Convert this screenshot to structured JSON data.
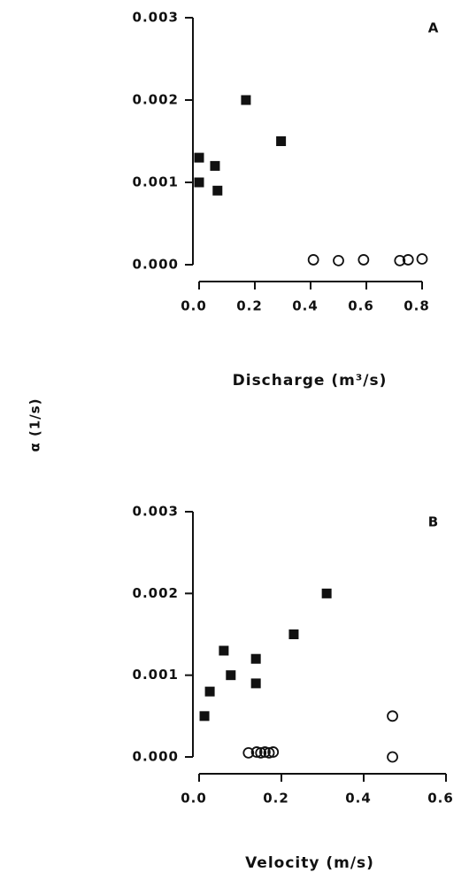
{
  "chart_data": [
    {
      "type": "scatter",
      "panel": "A",
      "xlabel": "Discharge (m³/s)",
      "ylabel": "α (1/s)",
      "xlim": [
        0,
        0.8
      ],
      "xticks": [
        {
          "value": 0,
          "label": "0.0"
        },
        0.2,
        0.4,
        0.6,
        0.8
      ],
      "ylim": [
        0,
        0.003
      ],
      "yticks": [
        {
          "value": 0,
          "label": "0.000"
        },
        0.001,
        0.002,
        0.003
      ],
      "series": [
        {
          "marker": "square",
          "color": "#111",
          "x": [
            0.0,
            0.0,
            0.057,
            0.066,
            0.168,
            0.294
          ],
          "values": [
            0.0013,
            0.001,
            0.0012,
            0.0009,
            0.002,
            0.0015
          ]
        },
        {
          "marker": "circle",
          "color": "#111",
          "x": [
            0.41,
            0.5,
            0.59,
            0.72,
            0.75,
            0.8
          ],
          "values": [
            6e-05,
            5e-05,
            6e-05,
            5e-05,
            6e-05,
            7e-05
          ]
        }
      ]
    },
    {
      "type": "scatter",
      "panel": "B",
      "xlabel": "Velocity (m/s)",
      "xlim": [
        0,
        0.6
      ],
      "xticks": [
        {
          "value": 0,
          "label": "0.0"
        },
        0.2,
        0.4,
        0.6
      ],
      "ylim": [
        0,
        0.003
      ],
      "yticks": [
        {
          "value": 0,
          "label": "0.000"
        },
        0.001,
        0.002,
        0.003
      ],
      "series": [
        {
          "marker": "square",
          "color": "#111",
          "x": [
            0.013,
            0.026,
            0.06,
            0.077,
            0.138,
            0.138,
            0.23,
            0.31
          ],
          "values": [
            0.0005,
            0.0008,
            0.0013,
            0.001,
            0.0012,
            0.0009,
            0.0015,
            0.002
          ]
        },
        {
          "marker": "circle",
          "color": "#111",
          "x": [
            0.12,
            0.14,
            0.15,
            0.16,
            0.17,
            0.18,
            0.47,
            0.47
          ],
          "values": [
            5e-05,
            6e-05,
            5e-05,
            6e-05,
            5e-05,
            6e-05,
            0.0005,
            0.0
          ]
        }
      ]
    }
  ]
}
